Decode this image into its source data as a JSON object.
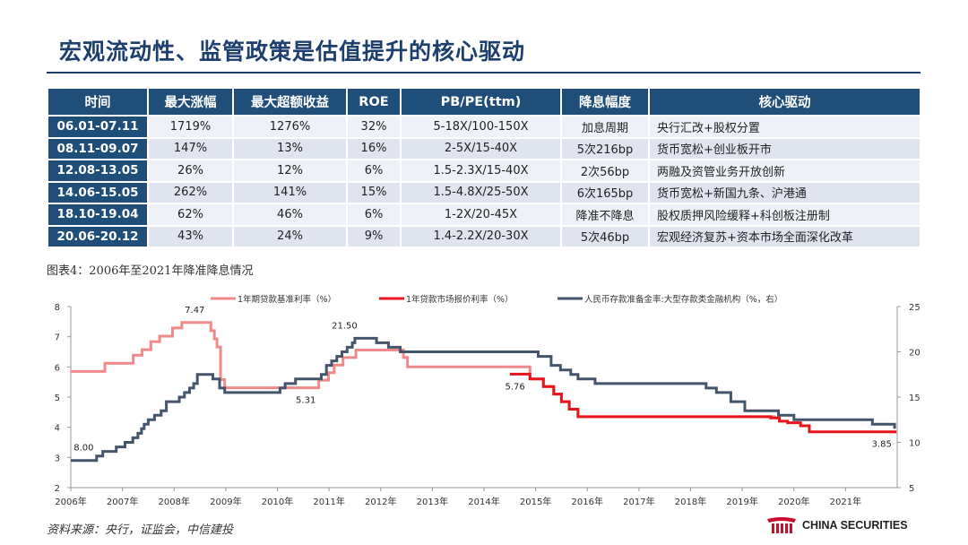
{
  "title": "宏观流动性、监管政策是估值提升的核心驱动",
  "table": {
    "headers": [
      "时间",
      "最大涨幅",
      "最大超额收益",
      "ROE",
      "PB/PE(ttm)",
      "降息幅度",
      "核心驱动"
    ],
    "rows": [
      [
        "06.01-07.11",
        "1719%",
        "1276%",
        "32%",
        "5-18X/100-150X",
        "加息周期",
        "央行汇改+股权分置"
      ],
      [
        "08.11-09.07",
        "147%",
        "13%",
        "16%",
        "2-5X/15-40X",
        "5次216bp",
        "货币宽松+创业板开市"
      ],
      [
        "12.08-13.05",
        "26%",
        "12%",
        "6%",
        "1.5-2.3X/15-40X",
        "2次56bp",
        "两融及资管业务开放创新"
      ],
      [
        "14.06-15.05",
        "262%",
        "141%",
        "15%",
        "1.5-4.8X/25-50X",
        "6次165bp",
        "货币宽松+新国九条、沪港通"
      ],
      [
        "18.10-19.04",
        "62%",
        "46%",
        "6%",
        "1-2X/20-45X",
        "降准不降息",
        "股权质押风险缓释+科创板注册制"
      ],
      [
        "20.06-20.12",
        "43%",
        "24%",
        "9%",
        "1.4-2.2X/20-30X",
        "5次46bp",
        "宏观经济复苏+资本市场全面深化改革"
      ]
    ]
  },
  "figure_caption": "图表4：2006年至2021年降准降息情况",
  "source": "资料来源：央行，证监会，中信建投",
  "logo": {
    "text": "CHINA SECURITIES",
    "color": "#c8102e"
  },
  "chart_data": {
    "type": "line",
    "xlim": [
      2006,
      2022
    ],
    "x_ticks": [
      "2006年",
      "2007年",
      "2008年",
      "2009年",
      "2010年",
      "2011年",
      "2012年",
      "2013年",
      "2014年",
      "2015年",
      "2016年",
      "2017年",
      "2018年",
      "2019年",
      "2020年",
      "2021年"
    ],
    "y_left": {
      "min": 2,
      "max": 8,
      "ticks": [
        "2",
        "3",
        "4",
        "5",
        "6",
        "7",
        "8"
      ]
    },
    "y_right": {
      "min": 5,
      "max": 25,
      "ticks": [
        "5",
        "10",
        "15",
        "20",
        "25"
      ]
    },
    "legend_position": "top",
    "series": [
      {
        "name": "1年期贷款基准利率（%）",
        "color": "#f08a8a",
        "axis": "left",
        "points": [
          [
            2006.0,
            5.85
          ],
          [
            2006.66,
            5.85
          ],
          [
            2006.66,
            6.12
          ],
          [
            2007.21,
            6.12
          ],
          [
            2007.21,
            6.39
          ],
          [
            2007.38,
            6.39
          ],
          [
            2007.38,
            6.57
          ],
          [
            2007.55,
            6.57
          ],
          [
            2007.55,
            6.84
          ],
          [
            2007.72,
            6.84
          ],
          [
            2007.72,
            7.02
          ],
          [
            2007.97,
            7.02
          ],
          [
            2007.97,
            7.29
          ],
          [
            2008.15,
            7.29
          ],
          [
            2008.15,
            7.47
          ],
          [
            2008.71,
            7.47
          ],
          [
            2008.71,
            7.2
          ],
          [
            2008.78,
            7.2
          ],
          [
            2008.78,
            6.93
          ],
          [
            2008.83,
            6.93
          ],
          [
            2008.83,
            6.66
          ],
          [
            2008.9,
            6.66
          ],
          [
            2008.9,
            5.58
          ],
          [
            2008.98,
            5.58
          ],
          [
            2008.98,
            5.31
          ],
          [
            2010.8,
            5.31
          ],
          [
            2010.8,
            5.56
          ],
          [
            2010.99,
            5.56
          ],
          [
            2010.99,
            5.81
          ],
          [
            2011.1,
            5.81
          ],
          [
            2011.1,
            6.06
          ],
          [
            2011.27,
            6.06
          ],
          [
            2011.27,
            6.31
          ],
          [
            2011.52,
            6.31
          ],
          [
            2011.52,
            6.56
          ],
          [
            2012.44,
            6.56
          ],
          [
            2012.44,
            6.31
          ],
          [
            2012.52,
            6.31
          ],
          [
            2012.52,
            6.0
          ],
          [
            2014.89,
            6.0
          ],
          [
            2014.89,
            5.6
          ],
          [
            2015.15,
            5.6
          ],
          [
            2015.15,
            5.35
          ],
          [
            2015.35,
            5.35
          ],
          [
            2015.35,
            5.1
          ],
          [
            2015.5,
            5.1
          ],
          [
            2015.5,
            4.85
          ],
          [
            2015.65,
            4.85
          ],
          [
            2015.65,
            4.6
          ],
          [
            2015.82,
            4.6
          ],
          [
            2015.82,
            4.35
          ],
          [
            2019.65,
            4.35
          ]
        ],
        "labels": [
          {
            "text": "7.47",
            "x": 2008.4,
            "y": 7.47
          },
          {
            "text": "5.31",
            "x": 2010.55,
            "y": 5.31
          }
        ]
      },
      {
        "name": "1年贷款市场报价利率（%）",
        "color": "#e8141b",
        "axis": "left",
        "points": [
          [
            2014.5,
            5.76
          ],
          [
            2014.89,
            5.76
          ],
          [
            2014.89,
            5.6
          ],
          [
            2015.15,
            5.6
          ],
          [
            2015.15,
            5.35
          ],
          [
            2015.35,
            5.35
          ],
          [
            2015.35,
            5.1
          ],
          [
            2015.5,
            5.1
          ],
          [
            2015.5,
            4.85
          ],
          [
            2015.65,
            4.85
          ],
          [
            2015.65,
            4.6
          ],
          [
            2015.82,
            4.6
          ],
          [
            2015.82,
            4.35
          ],
          [
            2019.55,
            4.35
          ],
          [
            2019.55,
            4.31
          ],
          [
            2019.72,
            4.31
          ],
          [
            2019.72,
            4.2
          ],
          [
            2019.88,
            4.2
          ],
          [
            2019.88,
            4.15
          ],
          [
            2020.13,
            4.15
          ],
          [
            2020.13,
            4.05
          ],
          [
            2020.3,
            4.05
          ],
          [
            2020.3,
            3.85
          ],
          [
            2021.96,
            3.85
          ],
          [
            2021.96,
            3.8
          ]
        ],
        "labels": [
          {
            "text": "5.76",
            "x": 2014.6,
            "y": 5.76
          },
          {
            "text": "3.85",
            "x": 2021.7,
            "y": 3.85
          }
        ]
      },
      {
        "name": "人民币存款准备金率:大型存款类金融机构（%，右）",
        "color": "#44546a",
        "axis": "right",
        "points": [
          [
            2006.0,
            8.0
          ],
          [
            2006.5,
            8.0
          ],
          [
            2006.5,
            8.5
          ],
          [
            2006.62,
            8.5
          ],
          [
            2006.62,
            9.0
          ],
          [
            2006.88,
            9.0
          ],
          [
            2006.88,
            9.5
          ],
          [
            2007.05,
            9.5
          ],
          [
            2007.05,
            10.0
          ],
          [
            2007.2,
            10.0
          ],
          [
            2007.2,
            10.5
          ],
          [
            2007.3,
            10.5
          ],
          [
            2007.3,
            11.0
          ],
          [
            2007.37,
            11.0
          ],
          [
            2007.37,
            11.5
          ],
          [
            2007.42,
            11.5
          ],
          [
            2007.42,
            12.0
          ],
          [
            2007.5,
            12.0
          ],
          [
            2007.5,
            12.5
          ],
          [
            2007.62,
            12.5
          ],
          [
            2007.62,
            13.0
          ],
          [
            2007.75,
            13.0
          ],
          [
            2007.75,
            13.5
          ],
          [
            2007.85,
            13.5
          ],
          [
            2007.85,
            14.5
          ],
          [
            2008.1,
            14.5
          ],
          [
            2008.1,
            15.0
          ],
          [
            2008.2,
            15.0
          ],
          [
            2008.2,
            15.5
          ],
          [
            2008.3,
            15.5
          ],
          [
            2008.3,
            16.0
          ],
          [
            2008.38,
            16.0
          ],
          [
            2008.38,
            16.5
          ],
          [
            2008.45,
            16.5
          ],
          [
            2008.45,
            17.5
          ],
          [
            2008.75,
            17.5
          ],
          [
            2008.75,
            17.0
          ],
          [
            2008.88,
            17.0
          ],
          [
            2008.88,
            16.0
          ],
          [
            2008.98,
            16.0
          ],
          [
            2008.98,
            15.5
          ],
          [
            2010.05,
            15.5
          ],
          [
            2010.05,
            16.0
          ],
          [
            2010.15,
            16.0
          ],
          [
            2010.15,
            16.5
          ],
          [
            2010.35,
            16.5
          ],
          [
            2010.35,
            17.0
          ],
          [
            2010.85,
            17.0
          ],
          [
            2010.85,
            17.5
          ],
          [
            2010.95,
            17.5
          ],
          [
            2010.95,
            18.5
          ],
          [
            2011.05,
            18.5
          ],
          [
            2011.05,
            19.0
          ],
          [
            2011.15,
            19.0
          ],
          [
            2011.15,
            19.5
          ],
          [
            2011.25,
            19.5
          ],
          [
            2011.25,
            20.0
          ],
          [
            2011.35,
            20.0
          ],
          [
            2011.35,
            20.5
          ],
          [
            2011.45,
            20.5
          ],
          [
            2011.45,
            21.0
          ],
          [
            2011.5,
            21.0
          ],
          [
            2011.5,
            21.5
          ],
          [
            2011.92,
            21.5
          ],
          [
            2011.92,
            21.0
          ],
          [
            2012.15,
            21.0
          ],
          [
            2012.15,
            20.5
          ],
          [
            2012.38,
            20.5
          ],
          [
            2012.38,
            20.0
          ],
          [
            2015.05,
            20.0
          ],
          [
            2015.05,
            19.5
          ],
          [
            2015.3,
            19.5
          ],
          [
            2015.3,
            18.5
          ],
          [
            2015.48,
            18.5
          ],
          [
            2015.48,
            18.0
          ],
          [
            2015.68,
            18.0
          ],
          [
            2015.68,
            17.5
          ],
          [
            2015.82,
            17.5
          ],
          [
            2015.82,
            17.0
          ],
          [
            2016.15,
            17.0
          ],
          [
            2016.15,
            16.5
          ],
          [
            2018.3,
            16.5
          ],
          [
            2018.3,
            16.0
          ],
          [
            2018.5,
            16.0
          ],
          [
            2018.5,
            15.5
          ],
          [
            2018.78,
            15.5
          ],
          [
            2018.78,
            14.5
          ],
          [
            2019.05,
            14.5
          ],
          [
            2019.05,
            13.5
          ],
          [
            2019.7,
            13.5
          ],
          [
            2019.7,
            13.0
          ],
          [
            2020.0,
            13.0
          ],
          [
            2020.0,
            12.5
          ],
          [
            2021.52,
            12.5
          ],
          [
            2021.52,
            12.0
          ],
          [
            2021.95,
            12.0
          ],
          [
            2021.95,
            11.5
          ]
        ],
        "labels": [
          {
            "text": "8.00",
            "x": 2006.25,
            "y": 8.0
          },
          {
            "text": "21.50",
            "x": 2011.3,
            "y": 21.5
          }
        ]
      }
    ]
  }
}
